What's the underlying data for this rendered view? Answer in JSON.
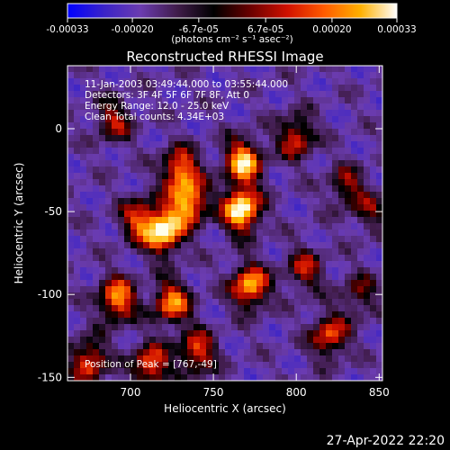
{
  "colorbar": {
    "ticks": [
      "-0.00033",
      "-0.00020",
      "-6.7e-05",
      "6.7e-05",
      "0.00020",
      "0.00033"
    ],
    "range": [
      -0.00033,
      0.00033
    ],
    "units_label": "(photons cm⁻² s⁻¹ asec⁻²)",
    "stops": [
      "#0000ff",
      "#3a23c8",
      "#6b3cb0",
      "#401c4a",
      "#000000",
      "#6a0000",
      "#d01000",
      "#ff5a00",
      "#ffb000",
      "#ffffff"
    ]
  },
  "chart_data": {
    "type": "heatmap",
    "title": "Reconstructed RHESSI Image",
    "xlabel": "Heliocentric X (arcsec)",
    "ylabel": "Heliocentric Y (arcsec)",
    "xlim": [
      662,
      852
    ],
    "ylim": [
      -152,
      38
    ],
    "xticks": [
      700,
      750,
      800,
      850
    ],
    "yticks": [
      0,
      -50,
      -100,
      -150
    ],
    "annotations": [
      "11-Jan-2003 03:49:44.000 to 03:55:44.000",
      "Detectors: 3F 4F 5F 6F 7F 8F, Att 0",
      "Energy Range: 12.0 - 25.0 keV",
      "Clean     Total counts: 4.34E+03"
    ],
    "peak_label": "Position of Peak = [767,-49]",
    "peak": [
      767,
      -49
    ],
    "sources": [
      {
        "x": 767,
        "y": -49,
        "amp": 1.0
      },
      {
        "x": 768,
        "y": -20,
        "amp": 0.85
      },
      {
        "x": 772,
        "y": -95,
        "amp": 0.8
      },
      {
        "x": 720,
        "y": -62,
        "amp": 0.95
      },
      {
        "x": 735,
        "y": -45,
        "amp": 0.8
      },
      {
        "x": 730,
        "y": -25,
        "amp": 0.7
      },
      {
        "x": 705,
        "y": -55,
        "amp": 0.55
      },
      {
        "x": 692,
        "y": -103,
        "amp": 0.75
      },
      {
        "x": 675,
        "y": -140,
        "amp": 0.6
      },
      {
        "x": 725,
        "y": -105,
        "amp": 0.7
      },
      {
        "x": 740,
        "y": -135,
        "amp": 0.6
      },
      {
        "x": 712,
        "y": -143,
        "amp": 0.65
      },
      {
        "x": 800,
        "y": -5,
        "amp": 0.55
      },
      {
        "x": 830,
        "y": -35,
        "amp": 0.4
      },
      {
        "x": 820,
        "y": -125,
        "amp": 0.6
      },
      {
        "x": 805,
        "y": -85,
        "amp": 0.45
      },
      {
        "x": 838,
        "y": -100,
        "amp": 0.35
      },
      {
        "x": 690,
        "y": 5,
        "amp": 0.45
      },
      {
        "x": 845,
        "y": -50,
        "amp": 0.3
      }
    ]
  },
  "footer_timestamp": "27-Apr-2022 22:20"
}
